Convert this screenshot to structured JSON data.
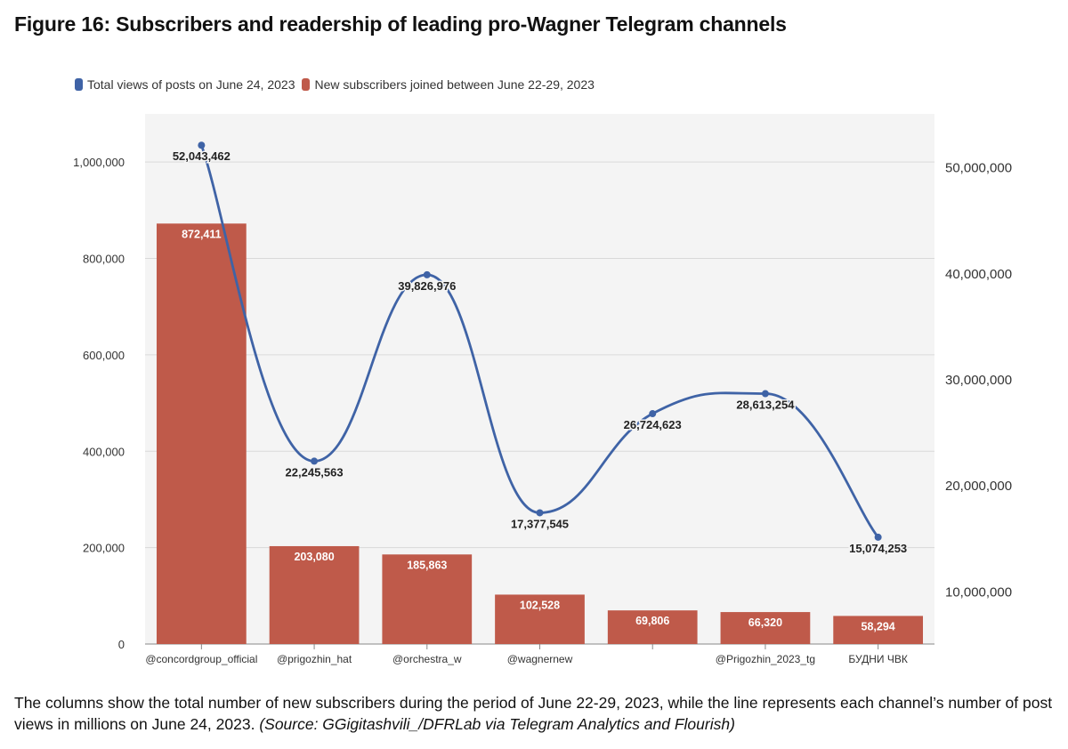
{
  "title": "Figure 16: Subscribers and readership of leading pro-Wagner Telegram channels",
  "caption": {
    "text": "The columns show the total number of new subscribers during the period of June 22-29, 2023, while the line represents each channel’s number of post views in millions on June 24, 2023.",
    "source": "(Source: GGigitashvili_/DFRLab via Telegram Analytics and Flourish)"
  },
  "colors": {
    "bar": "#bf5a4a",
    "line": "#3f63a6"
  },
  "chart_data": {
    "type": "bar",
    "categories": [
      "@concordgroup_official",
      "@prigozhin_hat",
      "@orchestra_w",
      "@wagnernew",
      "",
      "@Prigozhin_2023_tg",
      "БУДНИ ЧВК"
    ],
    "series": [
      {
        "name": "New subscribers joined between June 22-29, 2023",
        "type": "bar",
        "axis": "left",
        "values": [
          872411,
          203080,
          185863,
          102528,
          69806,
          66320,
          58294
        ],
        "labels": [
          "872,411",
          "203,080",
          "185,863",
          "102,528",
          "69,806",
          "66,320",
          "58,294"
        ]
      },
      {
        "name": "Total views of posts on June 24, 2023",
        "type": "line",
        "axis": "right",
        "values": [
          52043462,
          22245563,
          39826976,
          17377545,
          26724623,
          28613254,
          15074253
        ],
        "labels": [
          "52,043,462",
          "22,245,563",
          "39,826,976",
          "17,377,545",
          "26,724,623",
          "28,613,254",
          "15,074,253"
        ]
      }
    ],
    "y_left": {
      "min": 0,
      "max": 1100000,
      "ticks": [
        0,
        200000,
        400000,
        600000,
        800000,
        1000000
      ],
      "tick_labels": [
        "0",
        "200,000",
        "400,000",
        "600,000",
        "800,000",
        "1,000,000"
      ]
    },
    "y_right": {
      "min": 5000000,
      "max": 55000000,
      "ticks": [
        10000000,
        20000000,
        30000000,
        40000000,
        50000000
      ],
      "tick_labels": [
        "10,000,000",
        "20,000,000",
        "30,000,000",
        "40,000,000",
        "50,000,000"
      ]
    },
    "legend": [
      "Total views of posts on June 24, 2023",
      "New subscribers joined between June 22-29, 2023"
    ],
    "legend_position": "top-left",
    "grid": true
  }
}
